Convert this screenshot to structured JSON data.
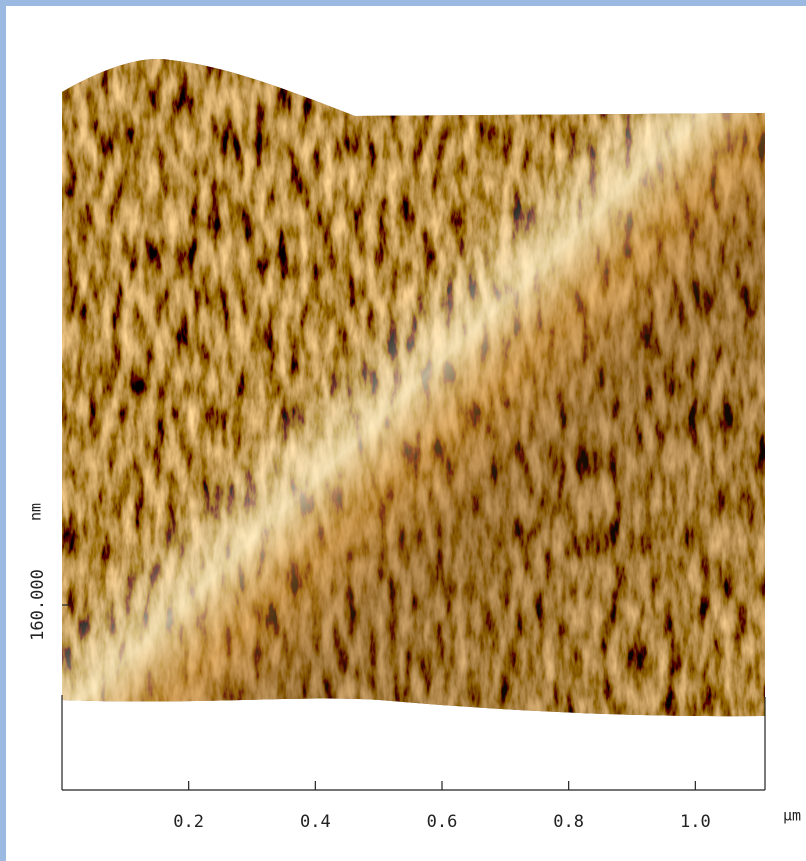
{
  "chart_data": {
    "type": "surface",
    "x_unit": "µm",
    "z_unit": "nm",
    "xlim": [
      0,
      1.11
    ],
    "xticks": [
      0.2,
      0.4,
      0.6,
      0.8,
      {
        "value": 1.0,
        "label": "1.0"
      }
    ],
    "zlim": [
      0,
      160
    ],
    "zticks": [
      {
        "value": 160,
        "label": "160.000"
      }
    ]
  }
}
